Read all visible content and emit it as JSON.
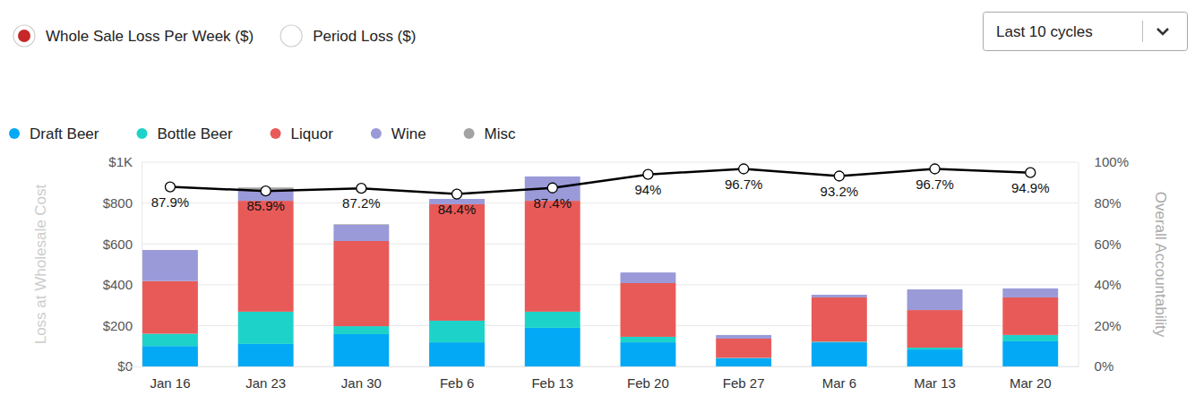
{
  "chart_data": {
    "type": "bar",
    "stacked": true,
    "grid": true,
    "legend": "top-left",
    "y_label": "Loss at Wholesale Cost",
    "y2_label": "Overall Accountability",
    "categories": [
      "Jan 16",
      "Jan 23",
      "Jan 30",
      "Feb 6",
      "Feb 13",
      "Feb 20",
      "Feb 27",
      "Mar 6",
      "Mar 13",
      "Mar 20"
    ],
    "ylim": [
      0,
      1000
    ],
    "yticks": [
      {
        "value": 0,
        "label": "$0"
      },
      {
        "value": 200,
        "label": "$200"
      },
      {
        "value": 400,
        "label": "$400"
      },
      {
        "value": 600,
        "label": "$600"
      },
      {
        "value": 800,
        "label": "$800"
      },
      {
        "value": 1000,
        "label": "$1K"
      }
    ],
    "y2lim": [
      0,
      100
    ],
    "y2ticks": [
      {
        "value": 0,
        "label": "0%"
      },
      {
        "value": 20,
        "label": "20%"
      },
      {
        "value": 40,
        "label": "40%"
      },
      {
        "value": 60,
        "label": "60%"
      },
      {
        "value": 80,
        "label": "80%"
      },
      {
        "value": 100,
        "label": "100%"
      }
    ],
    "series": [
      {
        "name": "Draft Beer",
        "type": "bar",
        "color": "#03a9f4",
        "values": [
          100,
          110,
          158,
          118,
          189,
          118,
          40,
          118,
          83,
          123
        ]
      },
      {
        "name": "Bottle Beer",
        "type": "bar",
        "color": "#1dd3c9",
        "values": [
          60,
          158,
          39,
          106,
          79,
          27,
          2,
          3,
          9,
          31
        ]
      },
      {
        "name": "Liquor",
        "type": "bar",
        "color": "#e85a58",
        "values": [
          258,
          543,
          417,
          570,
          543,
          263,
          94,
          217,
          184,
          184
        ]
      },
      {
        "name": "Wine",
        "type": "bar",
        "color": "#9a9ad9",
        "values": [
          152,
          55,
          79,
          26,
          119,
          52,
          18,
          13,
          101,
          44
        ]
      },
      {
        "name": "Misc",
        "type": "bar",
        "color": "#a3a3a3",
        "values": [
          0,
          10,
          3,
          0,
          0,
          0,
          0,
          0,
          0,
          0
        ]
      },
      {
        "type": "line",
        "axis": "y2",
        "color": "#000000",
        "marker": "circle",
        "data_labels": true,
        "values": [
          87.9,
          85.9,
          87.2,
          84.4,
          87.4,
          94,
          96.7,
          93.2,
          96.7,
          94.9
        ],
        "value_labels": [
          "87.9%",
          "85.9%",
          "87.2%",
          "84.4%",
          "87.4%",
          "94%",
          "96.7%",
          "93.2%",
          "96.7%",
          "94.9%"
        ]
      }
    ]
  },
  "controls": {
    "radio_options": [
      "Whole Sale Loss Per Week ($)",
      "Period Loss ($)"
    ],
    "selected": 0,
    "dropdown": "Last 10 cycles"
  }
}
